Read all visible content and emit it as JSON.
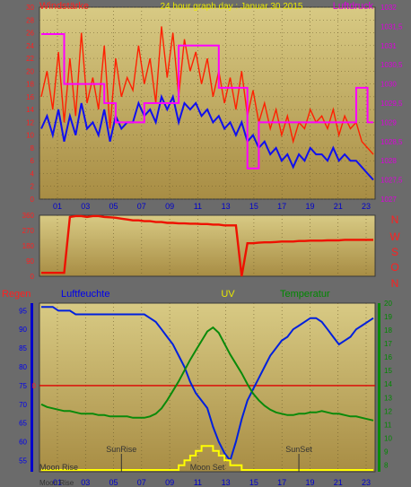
{
  "header": {
    "title": "24 hour graph day : Januar 30 2015",
    "left_label": "Windstärke",
    "right_label": "Luftdruck"
  },
  "bottom_header": {
    "regen": "Regen",
    "luftfeuchte": "Luftfeuchte",
    "uv": "UV",
    "temperatur": "Temperatur"
  },
  "compass": [
    "N",
    "W",
    "S",
    "O",
    "N"
  ],
  "markers": {
    "sunrise": "SunRise",
    "sunset": "SunSet",
    "moonrise": "Moon Rise",
    "moonset": "Moon Set"
  },
  "colors": {
    "background": "#6b6b6b",
    "panel_top": "#d6c780",
    "panel_bottom": "#ad9448",
    "wind_gust": "#ff2000",
    "wind_avg": "#1010ee",
    "pressure": "#ff00ff",
    "direction": "#ee1100",
    "humidity": "#0020dd",
    "temperature": "#0a8a0a",
    "uv": "#ffff00",
    "rain": "#dd0000",
    "label_red": "#ff2020",
    "label_yellow": "#e8e800",
    "label_green": "#008800",
    "label_magenta": "#dd00dd",
    "label_blue": "#0000ee"
  },
  "chart_data": [
    {
      "type": "line",
      "name": "wind-pressure",
      "x_ticks": [
        "01",
        "03",
        "05",
        "07",
        "09",
        "11",
        "13",
        "15",
        "17",
        "19",
        "21",
        "23"
      ],
      "y_left_ticks": [
        0,
        2,
        4,
        6,
        8,
        10,
        12,
        14,
        16,
        18,
        20,
        22,
        24,
        26,
        28,
        30
      ],
      "y_left_range": [
        0,
        30
      ],
      "y_right_ticks": [
        "1027",
        "1027,5",
        "1028",
        "1028,5",
        "1029",
        "1029,5",
        "1030",
        "1030,5",
        "1031",
        "1031,5",
        "1032"
      ],
      "y_right_range": [
        1027,
        1032
      ],
      "series": [
        {
          "name": "Windstärke",
          "role": "gust",
          "values": [
            16,
            20,
            14,
            23,
            12,
            22,
            13,
            26,
            15,
            19,
            14,
            24,
            11,
            22,
            16,
            19,
            17,
            24,
            18,
            22,
            15,
            27,
            19,
            26,
            16,
            25,
            20,
            23,
            18,
            22,
            16,
            20,
            15,
            19,
            14,
            20,
            13,
            17,
            12,
            15,
            11,
            14,
            10,
            13,
            9,
            12,
            11,
            14,
            12,
            13,
            11,
            14,
            10,
            13,
            11,
            12,
            9,
            8,
            7
          ]
        },
        {
          "name": "Windstärke",
          "role": "average",
          "values": [
            11,
            13,
            10,
            14,
            9,
            13,
            10,
            15,
            11,
            12,
            10,
            14,
            9,
            13,
            11,
            12,
            12,
            15,
            13,
            14,
            12,
            16,
            14,
            16,
            12,
            15,
            14,
            15,
            13,
            14,
            12,
            13,
            11,
            12,
            10,
            12,
            9,
            10,
            8,
            9,
            7,
            8,
            6,
            7,
            5,
            7,
            6,
            8,
            7,
            7,
            6,
            8,
            6,
            7,
            6,
            6,
            5,
            4,
            3
          ]
        },
        {
          "name": "Luftdruck",
          "role": "pressure",
          "values": [
            1031.3,
            1031.3,
            1031.3,
            1031.3,
            1030.0,
            1030.0,
            1030.0,
            1030.0,
            1030.0,
            1030.0,
            1030.0,
            1029.5,
            1029.5,
            1029.0,
            1029.0,
            1029.0,
            1029.0,
            1029.0,
            1029.5,
            1029.5,
            1029.5,
            1029.5,
            1029.5,
            1029.5,
            1031.0,
            1031.0,
            1031.0,
            1031.0,
            1031.0,
            1031.0,
            1031.0,
            1029.9,
            1029.9,
            1029.9,
            1029.9,
            1029.9,
            1027.8,
            1027.8,
            1029.0,
            1029.0,
            1029.0,
            1029.0,
            1029.0,
            1029.0,
            1029.0,
            1029.0,
            1029.0,
            1029.0,
            1029.0,
            1029.0,
            1029.0,
            1029.0,
            1029.0,
            1029.0,
            1029.0,
            1029.9,
            1029.9,
            1029.0,
            1029.0
          ]
        }
      ]
    },
    {
      "type": "line",
      "name": "wind-direction",
      "y_ticks": [
        0,
        90,
        180,
        270,
        360
      ],
      "y_range": [
        0,
        360
      ],
      "series": [
        {
          "name": "direction",
          "values": [
            20,
            20,
            20,
            20,
            20,
            350,
            355,
            355,
            350,
            355,
            355,
            350,
            348,
            345,
            340,
            335,
            330,
            330,
            325,
            325,
            320,
            320,
            315,
            315,
            312,
            312,
            310,
            310,
            308,
            308,
            305,
            305,
            300,
            300,
            300,
            0,
            195,
            195,
            198,
            200,
            200,
            202,
            205,
            205,
            205,
            208,
            208,
            210,
            210,
            210,
            212,
            212,
            212,
            215,
            215,
            215,
            215,
            215,
            215
          ]
        }
      ]
    },
    {
      "type": "line",
      "name": "humidity-temperature-uv",
      "y_left_ticks": [
        55,
        60,
        65,
        70,
        75,
        80,
        85,
        90,
        95
      ],
      "y_left_range": [
        52,
        97
      ],
      "y_right_ticks": [
        8,
        9,
        10,
        11,
        12,
        13,
        14,
        15,
        16,
        17,
        18,
        19,
        20
      ],
      "y_right_range": [
        7.5,
        20
      ],
      "rain_zero_label": "0",
      "series": [
        {
          "name": "Luftfeuchte",
          "values": [
            96,
            96,
            96,
            95,
            95,
            95,
            94,
            94,
            94,
            94,
            94,
            94,
            94,
            94,
            94,
            94,
            94,
            94,
            94,
            93,
            92,
            90,
            88,
            86,
            83,
            80,
            76,
            73,
            71,
            69,
            64,
            60,
            57,
            55,
            60,
            66,
            71,
            74,
            77,
            80,
            83,
            85,
            87,
            88,
            90,
            91,
            92,
            93,
            93,
            92,
            90,
            88,
            86,
            87,
            88,
            90,
            91,
            92,
            93
          ]
        },
        {
          "name": "Temperatur",
          "values": [
            12.5,
            12.3,
            12.2,
            12.1,
            12.0,
            12.0,
            11.9,
            11.8,
            11.8,
            11.8,
            11.7,
            11.7,
            11.6,
            11.6,
            11.6,
            11.6,
            11.5,
            11.5,
            11.5,
            11.6,
            11.8,
            12.2,
            12.8,
            13.5,
            14.2,
            15.0,
            15.8,
            16.5,
            17.2,
            17.9,
            18.2,
            17.8,
            17.0,
            16.2,
            15.5,
            14.8,
            14.0,
            13.3,
            12.8,
            12.4,
            12.1,
            11.9,
            11.8,
            11.7,
            11.7,
            11.8,
            11.8,
            11.9,
            11.9,
            12.0,
            11.9,
            11.8,
            11.8,
            11.7,
            11.6,
            11.6,
            11.5,
            11.4,
            11.3
          ]
        },
        {
          "name": "UV",
          "values": [
            0,
            0,
            0,
            0,
            0,
            0,
            0,
            0,
            0,
            0,
            0,
            0,
            0,
            0,
            0,
            0,
            0,
            0,
            0,
            0,
            0,
            0,
            0,
            0,
            1,
            2,
            3,
            4,
            5,
            5,
            4,
            3,
            2,
            1,
            1,
            0,
            0,
            0,
            0,
            0,
            0,
            0,
            0,
            0,
            0,
            0,
            0,
            0,
            0,
            0,
            0,
            0,
            0,
            0,
            0,
            0,
            0,
            0,
            0
          ]
        }
      ]
    }
  ]
}
